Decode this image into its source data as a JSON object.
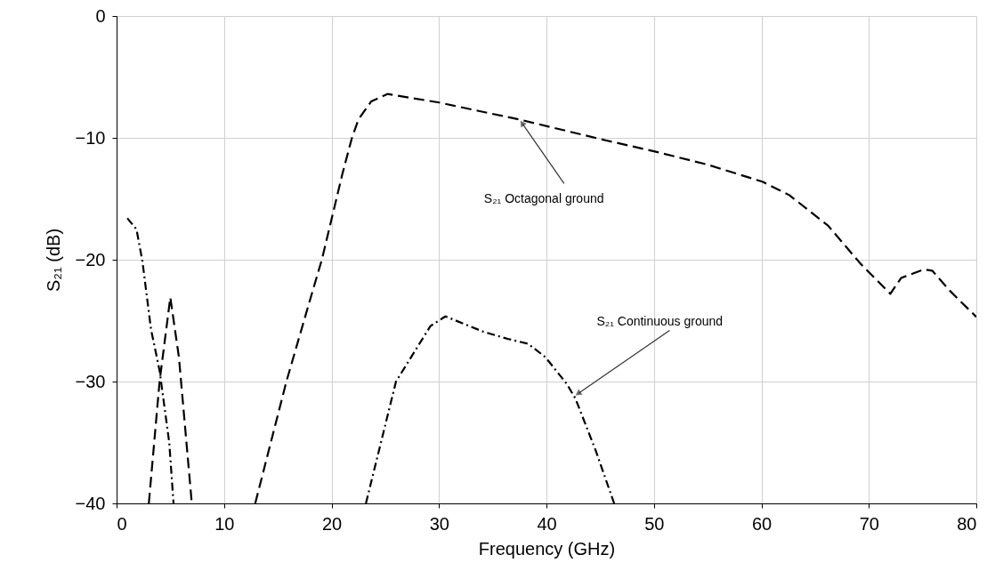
{
  "chart_data": {
    "type": "line",
    "xlabel": "Frequency (GHz)",
    "ylabel": "S₂₁ (dB)",
    "xlim": [
      0,
      80
    ],
    "ylim": [
      -40,
      0
    ],
    "xticks": [
      0,
      10,
      20,
      30,
      40,
      50,
      60,
      70,
      80
    ],
    "yticks": [
      -40,
      -30,
      -20,
      -10,
      0
    ],
    "grid": true,
    "marker": "none",
    "series": [
      {
        "color": "#000000",
        "line_style": "dashed",
        "x": [
          3.0,
          4.0,
          5.0,
          5.8,
          6.5,
          7.0,
          null,
          12.9,
          15.8,
          18.0,
          19.1,
          21.0,
          21.9,
          22.5,
          23.7,
          25.2,
          30.0,
          37.5,
          45.5,
          50.0,
          55.0,
          60.1,
          62.6,
          66.2,
          69.2,
          72.0,
          73.0,
          75.1,
          75.9,
          77.6,
          80.0
        ],
        "values": [
          -40,
          -30,
          -23.1,
          -28,
          -35,
          -40,
          null,
          -40,
          -30,
          -23.3,
          -20,
          -13,
          -10,
          -8.5,
          -7.0,
          -6.4,
          -7.1,
          -8.5,
          -10.2,
          -11.1,
          -12.2,
          -13.6,
          -14.7,
          -17.2,
          -20.3,
          -22.8,
          -21.5,
          -20.8,
          -20.9,
          -22.6,
          -24.7
        ]
      },
      {
        "color": "#000000",
        "line_style": "dashdot",
        "x": [
          1.0,
          1.85,
          2.4,
          3.2,
          4.0,
          4.9,
          5.3,
          null,
          23.2,
          26.0,
          29.2,
          30.6,
          34.1,
          36.4,
          38.3,
          39.9,
          41.9,
          42.7,
          44.6,
          46.3
        ],
        "values": [
          -16.6,
          -17.5,
          -20.1,
          -25.7,
          -29.1,
          -35,
          -40,
          null,
          -40,
          -30,
          -25.45,
          -24.65,
          -25.9,
          -26.5,
          -26.9,
          -28,
          -30.2,
          -31.4,
          -35.7,
          -40
        ]
      }
    ],
    "annotations": [
      {
        "text": "S₂₁ Octagonal ground",
        "x": 37.5,
        "y": -8.5
      },
      {
        "text": "S₂₁ Continuous ground",
        "x": 42.6,
        "y": -31.2
      }
    ]
  }
}
